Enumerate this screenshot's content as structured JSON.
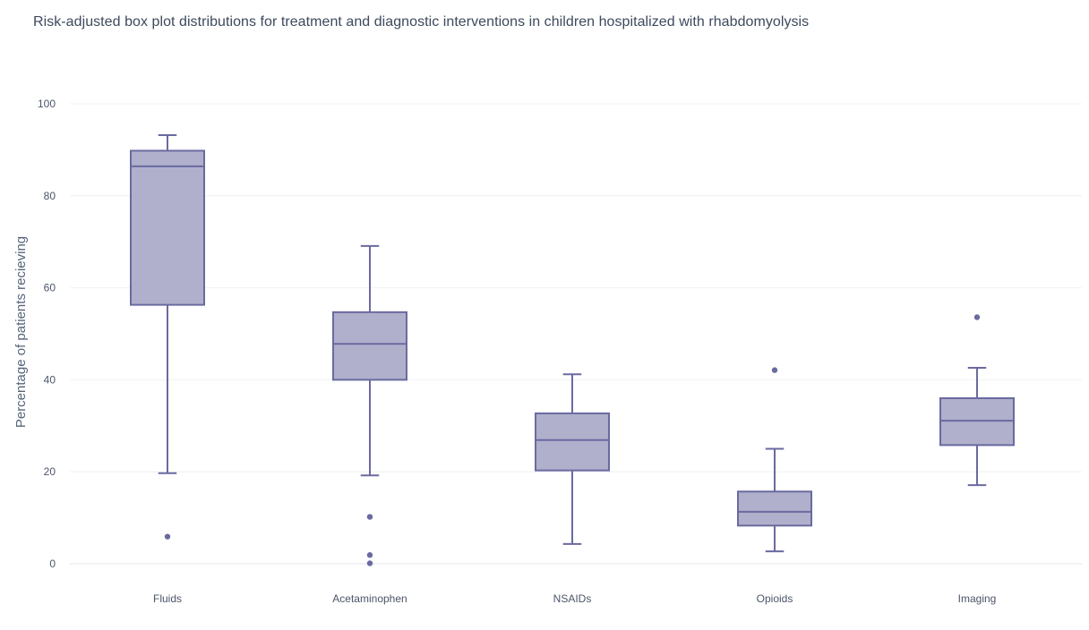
{
  "chart_data": {
    "type": "box",
    "title": "Risk-adjusted box plot distributions for treatment and diagnostic interventions in children hospitalized with rhabdomyolysis",
    "xlabel": "",
    "ylabel": "Percentage of patients recieving",
    "ylim": [
      0,
      100
    ],
    "yticks": [
      0,
      20,
      40,
      60,
      80,
      100
    ],
    "grid": true,
    "legend": "none",
    "color": "#6a6aa0",
    "fill_color": "#b0b0cc",
    "categories": [
      "Fluids",
      "Acetaminophen",
      "NSAIDs",
      "Opioids",
      "Imaging"
    ],
    "boxes": [
      {
        "category": "Fluids",
        "whisker_low": 19.7,
        "q1": 56.3,
        "median": 86.4,
        "q3": 89.8,
        "whisker_high": 93.2,
        "outliers": [
          5.9
        ]
      },
      {
        "category": "Acetaminophen",
        "whisker_low": 19.2,
        "q1": 40.0,
        "median": 47.8,
        "q3": 54.7,
        "whisker_high": 69.1,
        "outliers": [
          10.2,
          1.9,
          0.1
        ]
      },
      {
        "category": "NSAIDs",
        "whisker_low": 4.3,
        "q1": 20.3,
        "median": 26.9,
        "q3": 32.7,
        "whisker_high": 41.2,
        "outliers": []
      },
      {
        "category": "Opioids",
        "whisker_low": 2.7,
        "q1": 8.3,
        "median": 11.3,
        "q3": 15.7,
        "whisker_high": 25.0,
        "outliers": [
          42.1
        ]
      },
      {
        "category": "Imaging",
        "whisker_low": 17.1,
        "q1": 25.8,
        "median": 31.1,
        "q3": 36.0,
        "whisker_high": 42.6,
        "outliers": [
          53.6
        ]
      }
    ]
  }
}
